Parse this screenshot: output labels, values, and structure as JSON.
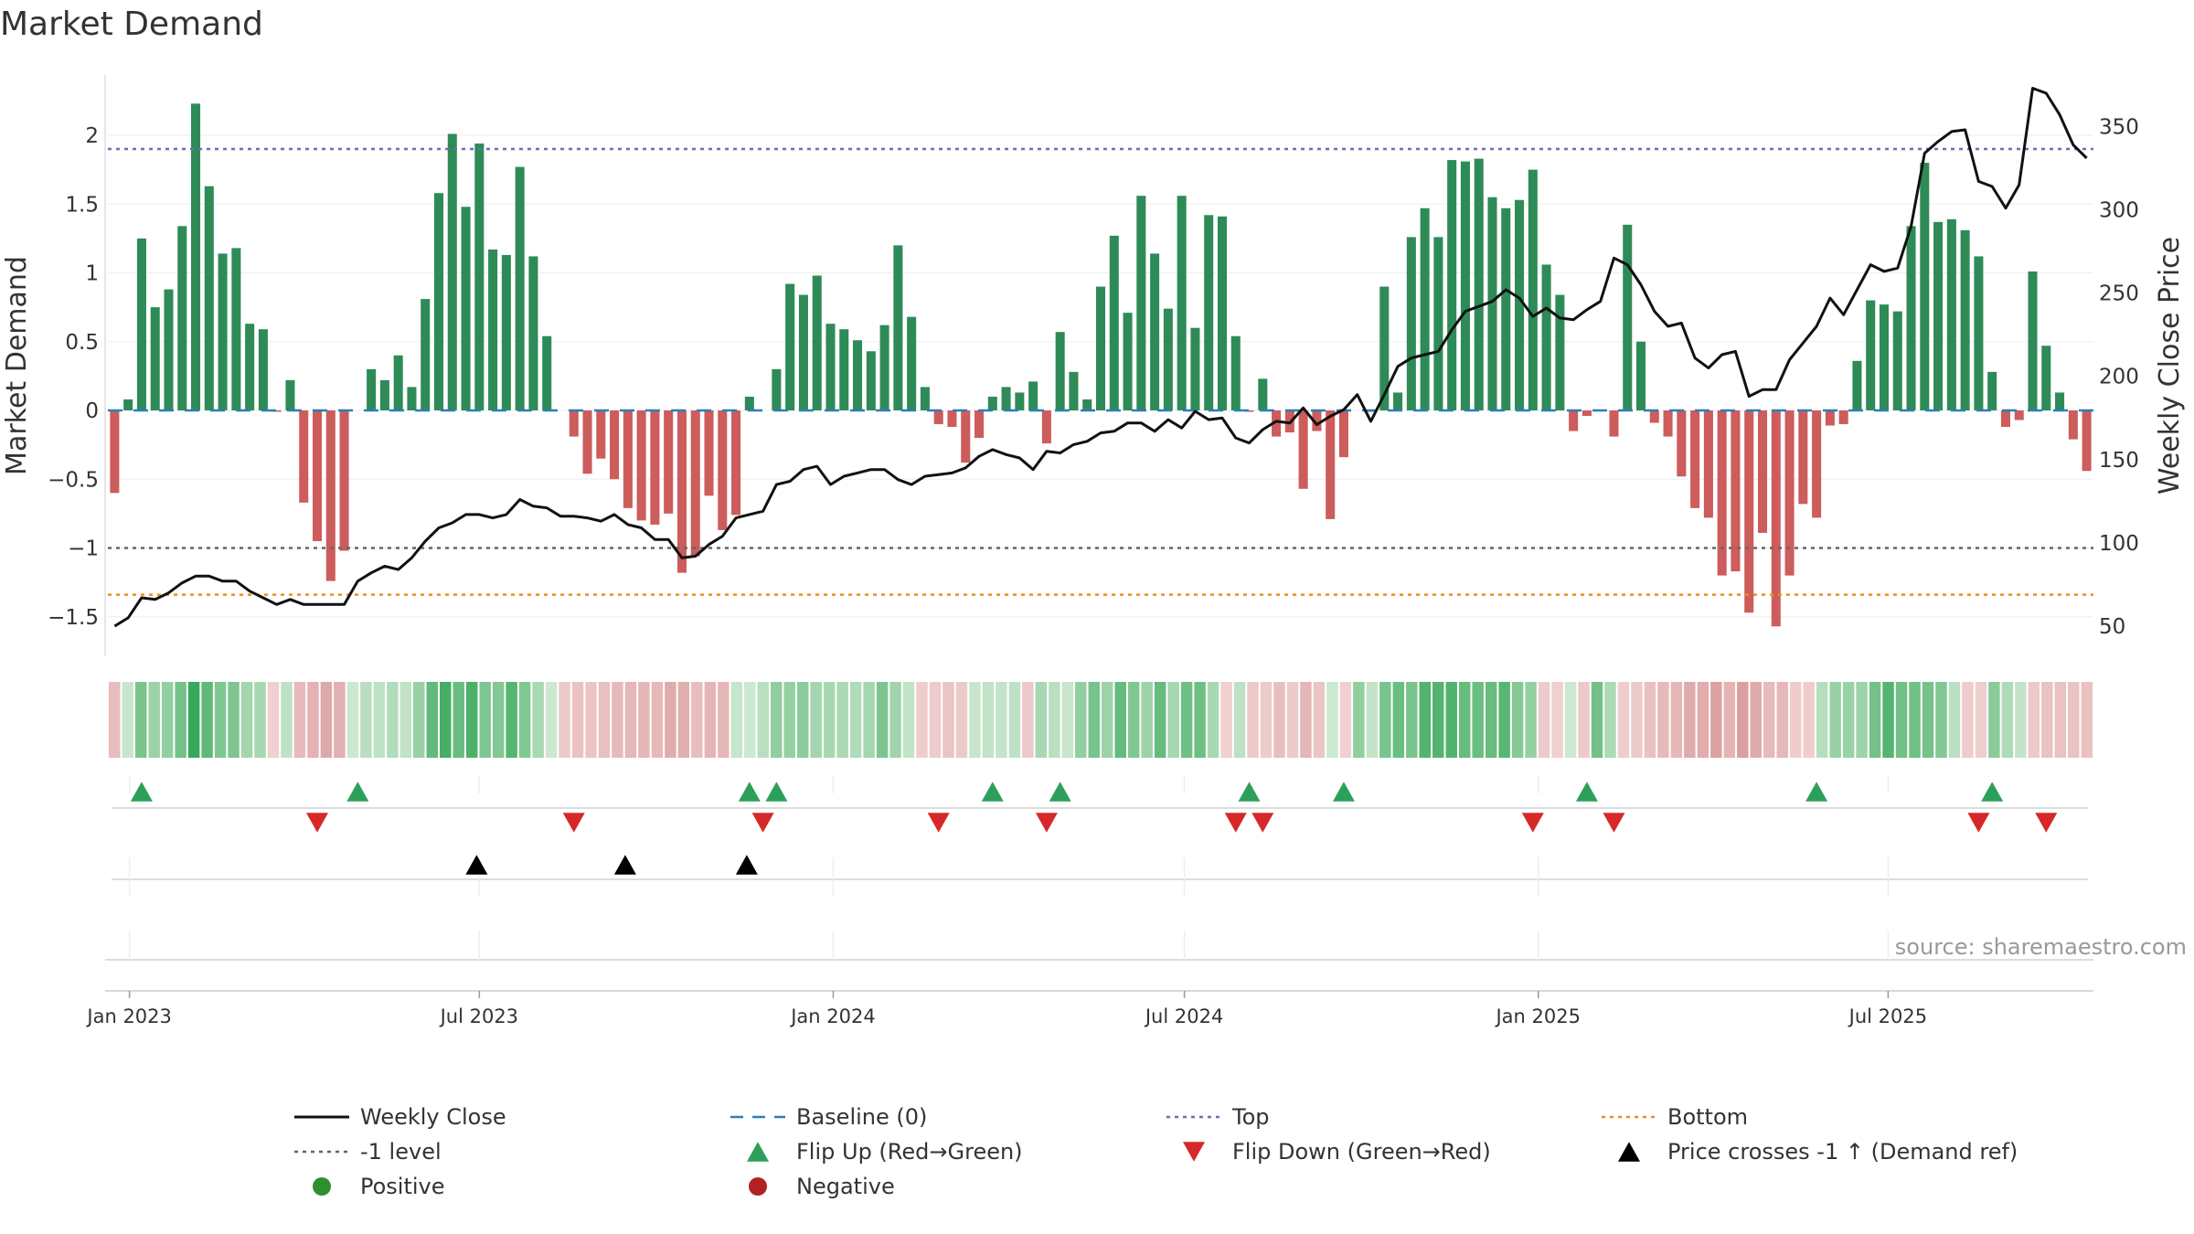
{
  "chart_data": {
    "type": "bar",
    "title": "Market Demand",
    "ylabel": "Market Demand",
    "y2label": "Weekly Close Price",
    "source": "source: sharemaestro.com",
    "ylim": [
      -1.78,
      2.45
    ],
    "y2lim": [
      31,
      383
    ],
    "yticks": [
      -1.5,
      -1,
      -0.5,
      0,
      0.5,
      1,
      1.5,
      2
    ],
    "ytick_labels": [
      "−1.5",
      "−1",
      "−0.5",
      "0",
      "0.5",
      "1",
      "1.5",
      "2"
    ],
    "y2ticks": [
      50,
      100,
      150,
      200,
      250,
      300,
      350
    ],
    "y2tick_labels": [
      "50",
      "100",
      "150",
      "200",
      "250",
      "300",
      "350"
    ],
    "x_ticks": [
      {
        "week": 1.1,
        "label": "Jan 2023"
      },
      {
        "week": 27,
        "label": "Jul 2023"
      },
      {
        "week": 53.2,
        "label": "Jan 2024"
      },
      {
        "week": 79.2,
        "label": "Jul 2024"
      },
      {
        "week": 105.4,
        "label": "Jan 2025"
      },
      {
        "week": 131.3,
        "label": "Jul 2025"
      }
    ],
    "reference_lines": {
      "top": 1.9,
      "minus_one": -1,
      "bottom": -1.34,
      "baseline": 0
    },
    "demand": [
      -0.6,
      0.08,
      1.25,
      0.75,
      0.88,
      1.34,
      2.23,
      1.63,
      1.14,
      1.18,
      0.63,
      0.59,
      -0.01,
      0.22,
      -0.67,
      -0.95,
      -1.24,
      -1.02,
      0.0,
      0.3,
      0.22,
      0.4,
      0.17,
      0.81,
      1.58,
      2.01,
      1.48,
      1.94,
      1.17,
      1.13,
      1.77,
      1.12,
      0.54,
      0.0,
      -0.19,
      -0.46,
      -0.35,
      -0.5,
      -0.71,
      -0.8,
      -0.83,
      -0.75,
      -1.18,
      -1.06,
      -0.62,
      -0.87,
      -0.76,
      0.1,
      0.0,
      0.3,
      0.92,
      0.84,
      0.98,
      0.63,
      0.59,
      0.51,
      0.43,
      0.62,
      1.2,
      0.68,
      0.17,
      -0.1,
      -0.12,
      -0.38,
      -0.2,
      0.1,
      0.17,
      0.13,
      0.21,
      -0.24,
      0.57,
      0.28,
      0.08,
      0.9,
      1.27,
      0.71,
      1.56,
      1.14,
      0.74,
      1.56,
      0.6,
      1.42,
      1.41,
      0.54,
      -0.01,
      0.23,
      -0.19,
      -0.16,
      -0.57,
      -0.15,
      -0.79,
      -0.34,
      0.0,
      -0.01,
      0.9,
      0.13,
      1.26,
      1.47,
      1.26,
      1.82,
      1.81,
      1.83,
      1.55,
      1.47,
      1.53,
      1.75,
      1.06,
      0.84,
      -0.15,
      -0.04,
      0.0,
      -0.19,
      1.35,
      0.5,
      -0.09,
      -0.19,
      -0.48,
      -0.71,
      -0.78,
      -1.2,
      -1.17,
      -1.47,
      -0.89,
      -1.57,
      -1.2,
      -0.68,
      -0.78,
      -0.11,
      -0.1,
      0.36,
      0.8,
      0.77,
      0.72,
      1.34,
      1.8,
      1.37,
      1.39,
      1.31,
      1.12,
      0.28,
      -0.12,
      -0.07,
      1.01,
      0.47,
      0.13,
      -0.21,
      -0.44
    ],
    "close": [
      50,
      55,
      67,
      66,
      70,
      76,
      80,
      80,
      77,
      77,
      71,
      67,
      63,
      66,
      63,
      63,
      63,
      63,
      77,
      82,
      86,
      84,
      91,
      101,
      109,
      112,
      117,
      117,
      115,
      117,
      126,
      122,
      121,
      116,
      116,
      115,
      113,
      117,
      111,
      109,
      102,
      102,
      91,
      92,
      99,
      104,
      115,
      117,
      119,
      135,
      137,
      144,
      146,
      135,
      140,
      142,
      144,
      144,
      138,
      135,
      140,
      141,
      142,
      145,
      152,
      156,
      153,
      151,
      144,
      155,
      154,
      159,
      161,
      166,
      167,
      172,
      172,
      167,
      174,
      169,
      179,
      174,
      175,
      163,
      160,
      168,
      173,
      172,
      181,
      171,
      176,
      180,
      189,
      173,
      189,
      206,
      211,
      213,
      215,
      228,
      239,
      242,
      245,
      252,
      247,
      236,
      241,
      235,
      234,
      240,
      245,
      271,
      267,
      255,
      239,
      230,
      232,
      211,
      205,
      213,
      215,
      188,
      192,
      192,
      210,
      220,
      230,
      247,
      237,
      252,
      267,
      263,
      265,
      290,
      334,
      341,
      347,
      348,
      317,
      314,
      301,
      315,
      373,
      370,
      357,
      339,
      331
    ],
    "heat_weeks": 150,
    "flip_up_weeks": [
      2,
      18,
      47,
      49,
      65,
      70,
      84,
      91,
      109,
      126,
      139
    ],
    "flip_down_weeks": [
      15,
      34,
      48,
      61,
      69,
      83,
      85,
      105,
      111,
      138,
      143
    ],
    "price_cross_weeks": [
      26.8,
      37.8,
      46.8
    ],
    "legend": [
      {
        "label": "Weekly Close",
        "symbol": "line",
        "color": "#111111"
      },
      {
        "label": "Baseline (0)",
        "symbol": "dash",
        "color": "#2a7fb8"
      },
      {
        "label": "Top",
        "symbol": "dot",
        "color": "#6f6bb6"
      },
      {
        "label": "Bottom",
        "symbol": "dot",
        "color": "#e8901c"
      },
      {
        "label": "-1 level",
        "symbol": "dot",
        "color": "#666666"
      },
      {
        "label": "Flip Up (Red→Green)",
        "symbol": "tri-up",
        "color": "#2ca05a"
      },
      {
        "label": "Flip Down (Green→Red)",
        "symbol": "tri-down",
        "color": "#d62828"
      },
      {
        "label": "Price crosses -1 ↑ (Demand ref)",
        "symbol": "tri-up",
        "color": "#000000"
      },
      {
        "label": "Positive",
        "symbol": "circle",
        "color": "#2f8f2f"
      },
      {
        "label": "Negative",
        "symbol": "circle",
        "color": "#b22222"
      }
    ],
    "colors": {
      "positive": "#2e8b57",
      "negative": "#cd5c5c",
      "price": "#111111",
      "flip_up": "#2ca05a",
      "flip_down": "#d62828",
      "cross": "#000000"
    }
  }
}
